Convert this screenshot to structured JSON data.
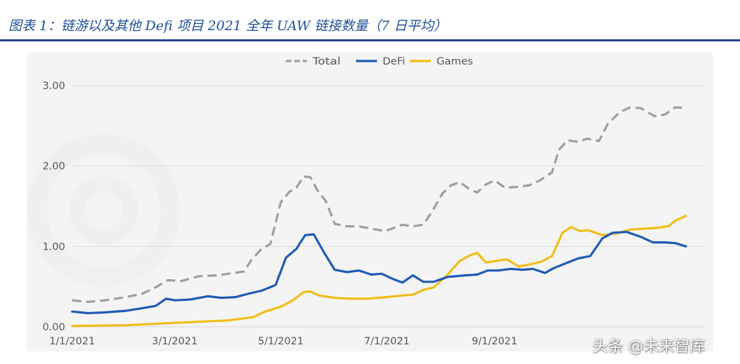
{
  "header": {
    "caption": "图表 1：链游以及其他 Defi 项目 2021 全年 UAW 链接数量（7 日平均）"
  },
  "watermark": "头条 @未来智库",
  "colors": {
    "total": "#9e9e9e",
    "defi": "#1f5bb5",
    "games": "#f2bd1a",
    "grid": "#d9d9d9",
    "axis_text": "#555555",
    "accent": "#24408e"
  },
  "chart_data": {
    "type": "line",
    "x_tick_labels": [
      "1/1/2021",
      "3/1/2021",
      "5/1/2021",
      "7/1/2021",
      "9/1/2021"
    ],
    "y_tick_labels": [
      "0.00",
      "1.00",
      "2.00",
      "3.00"
    ],
    "ylim": [
      0,
      3.0
    ],
    "xlim": [
      "2021-01-01",
      "2021-12-31"
    ],
    "grid": true,
    "legend_position": "top-center",
    "series": [
      {
        "name": "Total",
        "style": "dashed",
        "points": [
          [
            "2021-01-01",
            0.33
          ],
          [
            "2021-01-10",
            0.31
          ],
          [
            "2021-01-20",
            0.33
          ],
          [
            "2021-02-01",
            0.37
          ],
          [
            "2021-02-10",
            0.41
          ],
          [
            "2021-02-18",
            0.49
          ],
          [
            "2021-02-25",
            0.58
          ],
          [
            "2021-03-05",
            0.57
          ],
          [
            "2021-03-15",
            0.63
          ],
          [
            "2021-03-25",
            0.64
          ],
          [
            "2021-04-01",
            0.66
          ],
          [
            "2021-04-10",
            0.69
          ],
          [
            "2021-04-14",
            0.83
          ],
          [
            "2021-04-20",
            0.97
          ],
          [
            "2021-04-25",
            1.03
          ],
          [
            "2021-05-01",
            1.55
          ],
          [
            "2021-05-06",
            1.68
          ],
          [
            "2021-05-10",
            1.73
          ],
          [
            "2021-05-14",
            1.87
          ],
          [
            "2021-05-18",
            1.86
          ],
          [
            "2021-05-22",
            1.7
          ],
          [
            "2021-05-27",
            1.56
          ],
          [
            "2021-06-01",
            1.28
          ],
          [
            "2021-06-08",
            1.25
          ],
          [
            "2021-06-15",
            1.25
          ],
          [
            "2021-06-22",
            1.22
          ],
          [
            "2021-06-30",
            1.19
          ],
          [
            "2021-07-05",
            1.23
          ],
          [
            "2021-07-10",
            1.27
          ],
          [
            "2021-07-16",
            1.25
          ],
          [
            "2021-07-22",
            1.27
          ],
          [
            "2021-07-27",
            1.43
          ],
          [
            "2021-08-02",
            1.66
          ],
          [
            "2021-08-07",
            1.76
          ],
          [
            "2021-08-12",
            1.8
          ],
          [
            "2021-08-17",
            1.72
          ],
          [
            "2021-08-22",
            1.67
          ],
          [
            "2021-08-27",
            1.77
          ],
          [
            "2021-09-01",
            1.82
          ],
          [
            "2021-09-07",
            1.73
          ],
          [
            "2021-09-14",
            1.74
          ],
          [
            "2021-09-21",
            1.76
          ],
          [
            "2021-09-27",
            1.82
          ],
          [
            "2021-10-04",
            1.92
          ],
          [
            "2021-10-08",
            2.2
          ],
          [
            "2021-10-13",
            2.32
          ],
          [
            "2021-10-19",
            2.3
          ],
          [
            "2021-10-24",
            2.34
          ],
          [
            "2021-10-31",
            2.31
          ],
          [
            "2021-11-05",
            2.52
          ],
          [
            "2021-11-12",
            2.67
          ],
          [
            "2021-11-18",
            2.73
          ],
          [
            "2021-11-24",
            2.72
          ],
          [
            "2021-12-02",
            2.62
          ],
          [
            "2021-12-08",
            2.64
          ],
          [
            "2021-12-14",
            2.73
          ],
          [
            "2021-12-20",
            2.72
          ]
        ]
      },
      {
        "name": "DeFi",
        "style": "solid",
        "points": [
          [
            "2021-01-01",
            0.19
          ],
          [
            "2021-01-10",
            0.17
          ],
          [
            "2021-01-20",
            0.18
          ],
          [
            "2021-02-01",
            0.2
          ],
          [
            "2021-02-10",
            0.23
          ],
          [
            "2021-02-18",
            0.26
          ],
          [
            "2021-02-24",
            0.35
          ],
          [
            "2021-03-01",
            0.33
          ],
          [
            "2021-03-10",
            0.34
          ],
          [
            "2021-03-20",
            0.38
          ],
          [
            "2021-03-28",
            0.36
          ],
          [
            "2021-04-05",
            0.37
          ],
          [
            "2021-04-12",
            0.41
          ],
          [
            "2021-04-20",
            0.45
          ],
          [
            "2021-04-28",
            0.52
          ],
          [
            "2021-05-04",
            0.86
          ],
          [
            "2021-05-10",
            0.97
          ],
          [
            "2021-05-15",
            1.14
          ],
          [
            "2021-05-20",
            1.15
          ],
          [
            "2021-05-26",
            0.92
          ],
          [
            "2021-06-01",
            0.71
          ],
          [
            "2021-06-08",
            0.68
          ],
          [
            "2021-06-15",
            0.7
          ],
          [
            "2021-06-22",
            0.65
          ],
          [
            "2021-06-28",
            0.66
          ],
          [
            "2021-07-05",
            0.59
          ],
          [
            "2021-07-10",
            0.55
          ],
          [
            "2021-07-16",
            0.64
          ],
          [
            "2021-07-22",
            0.56
          ],
          [
            "2021-07-28",
            0.56
          ],
          [
            "2021-08-05",
            0.62
          ],
          [
            "2021-08-15",
            0.64
          ],
          [
            "2021-08-22",
            0.65
          ],
          [
            "2021-08-28",
            0.7
          ],
          [
            "2021-09-03",
            0.7
          ],
          [
            "2021-09-10",
            0.72
          ],
          [
            "2021-09-17",
            0.71
          ],
          [
            "2021-09-23",
            0.72
          ],
          [
            "2021-09-30",
            0.67
          ],
          [
            "2021-10-05",
            0.73
          ],
          [
            "2021-10-12",
            0.79
          ],
          [
            "2021-10-19",
            0.85
          ],
          [
            "2021-10-26",
            0.88
          ],
          [
            "2021-11-02",
            1.1
          ],
          [
            "2021-11-08",
            1.17
          ],
          [
            "2021-11-16",
            1.18
          ],
          [
            "2021-11-24",
            1.12
          ],
          [
            "2021-12-01",
            1.05
          ],
          [
            "2021-12-08",
            1.05
          ],
          [
            "2021-12-14",
            1.04
          ],
          [
            "2021-12-20",
            1.0
          ]
        ]
      },
      {
        "name": "Games",
        "style": "solid",
        "points": [
          [
            "2021-01-01",
            0.01
          ],
          [
            "2021-02-01",
            0.02
          ],
          [
            "2021-03-01",
            0.05
          ],
          [
            "2021-04-01",
            0.08
          ],
          [
            "2021-04-15",
            0.12
          ],
          [
            "2021-04-22",
            0.19
          ],
          [
            "2021-05-01",
            0.25
          ],
          [
            "2021-05-08",
            0.33
          ],
          [
            "2021-05-14",
            0.43
          ],
          [
            "2021-05-18",
            0.44
          ],
          [
            "2021-05-23",
            0.39
          ],
          [
            "2021-06-01",
            0.36
          ],
          [
            "2021-06-10",
            0.35
          ],
          [
            "2021-06-20",
            0.35
          ],
          [
            "2021-07-01",
            0.37
          ],
          [
            "2021-07-10",
            0.39
          ],
          [
            "2021-07-16",
            0.4
          ],
          [
            "2021-07-22",
            0.46
          ],
          [
            "2021-07-28",
            0.49
          ],
          [
            "2021-08-05",
            0.65
          ],
          [
            "2021-08-12",
            0.82
          ],
          [
            "2021-08-18",
            0.89
          ],
          [
            "2021-08-22",
            0.92
          ],
          [
            "2021-08-27",
            0.8
          ],
          [
            "2021-09-02",
            0.82
          ],
          [
            "2021-09-08",
            0.84
          ],
          [
            "2021-09-15",
            0.75
          ],
          [
            "2021-09-22",
            0.78
          ],
          [
            "2021-09-28",
            0.81
          ],
          [
            "2021-10-04",
            0.88
          ],
          [
            "2021-10-10",
            1.17
          ],
          [
            "2021-10-15",
            1.24
          ],
          [
            "2021-10-20",
            1.19
          ],
          [
            "2021-10-25",
            1.2
          ],
          [
            "2021-11-02",
            1.14
          ],
          [
            "2021-11-10",
            1.16
          ],
          [
            "2021-11-18",
            1.21
          ],
          [
            "2021-11-26",
            1.22
          ],
          [
            "2021-12-03",
            1.23
          ],
          [
            "2021-12-10",
            1.25
          ],
          [
            "2021-12-14",
            1.32
          ],
          [
            "2021-12-20",
            1.38
          ]
        ]
      }
    ]
  }
}
